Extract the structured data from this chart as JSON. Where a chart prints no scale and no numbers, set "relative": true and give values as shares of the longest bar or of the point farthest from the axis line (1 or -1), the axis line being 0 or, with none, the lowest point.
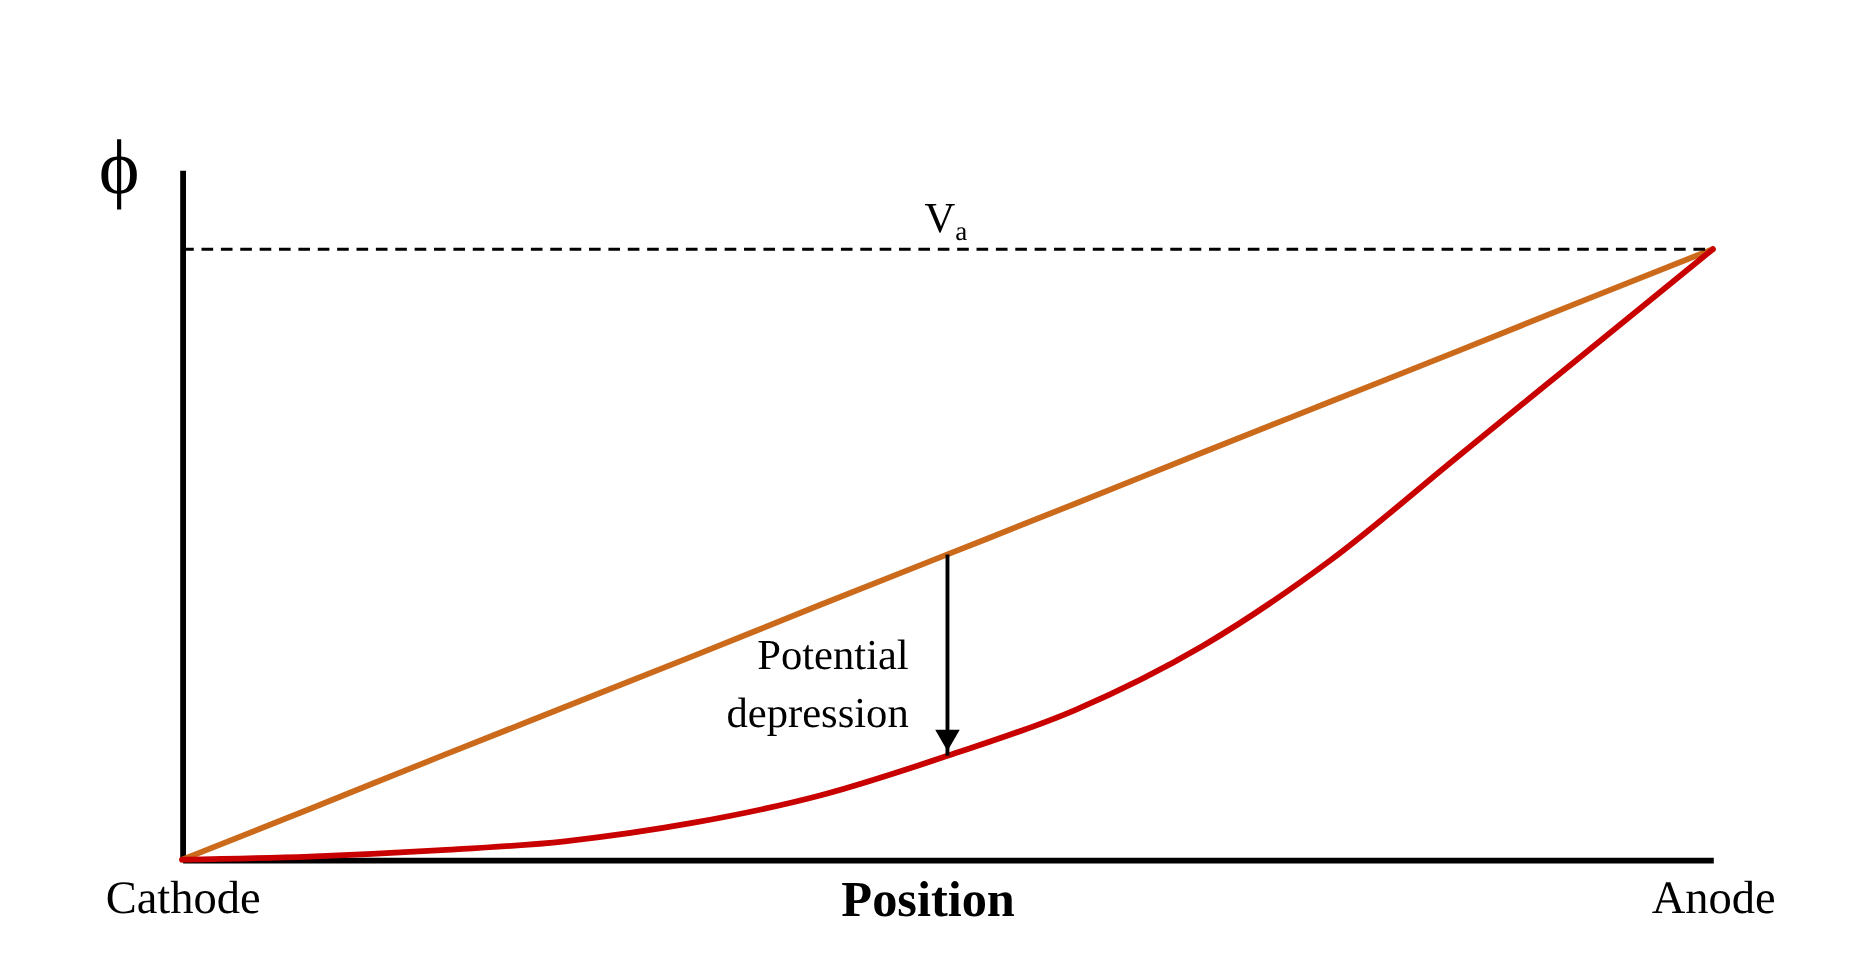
{
  "chart_data": {
    "type": "line",
    "relative": true,
    "xlabel": "Position",
    "ylabel": "ϕ",
    "categories": [
      "Cathode",
      null,
      null,
      null,
      null,
      null,
      null,
      null,
      null,
      null,
      null,
      null,
      "Anode"
    ],
    "series": [
      {
        "color": "#cc6a1c",
        "values": [
          0,
          0.083,
          0.167,
          0.25,
          0.333,
          0.417,
          0.5,
          0.583,
          0.667,
          0.75,
          0.833,
          0.917,
          1
        ]
      },
      {
        "color": "#c80000",
        "values": [
          0,
          0.005,
          0.015,
          0.03,
          0.06,
          0.105,
          0.17,
          0.245,
          0.35,
          0.49,
          0.66,
          0.83,
          1
        ]
      }
    ],
    "ref_lines": [
      {
        "axis": "y",
        "value": 1,
        "label": "V$_{a}$",
        "line_style": "dashed",
        "color": "#000000"
      }
    ],
    "annotations": [
      "Potential depression"
    ],
    "grid": false,
    "line_style": "solid",
    "marker": "none"
  }
}
